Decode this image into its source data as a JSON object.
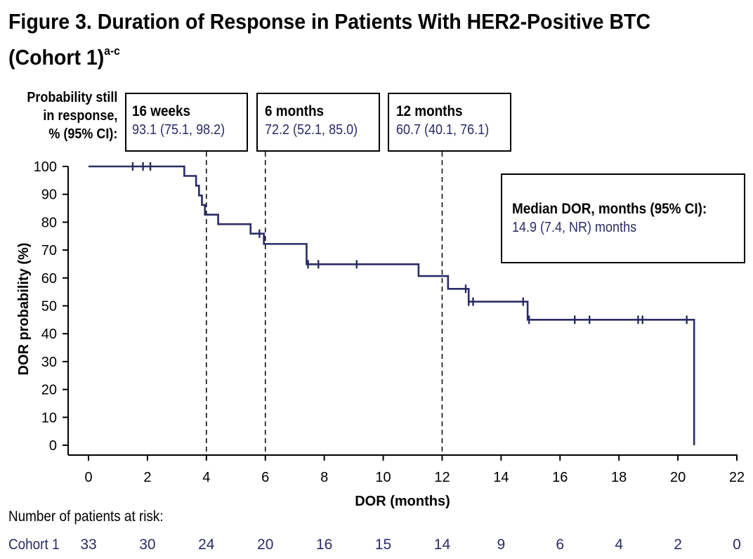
{
  "title": {
    "text": "Figure 3. Duration of Response in Patients With HER2-Positive BTC (Cohort 1)",
    "superscript": "a-c"
  },
  "annotation_label": [
    "Probability still",
    "in response,",
    "% (95% CI):"
  ],
  "callouts": [
    {
      "heading": "16 weeks",
      "value": "93.1 (75.1, 98.2)",
      "x": 4
    },
    {
      "heading": "6 months",
      "value": "72.2 (52.1, 85.0)",
      "x": 6
    },
    {
      "heading": "12 months",
      "value": "60.7 (40.1, 76.1)",
      "x": 12
    }
  ],
  "median_box": {
    "heading": "Median DOR, months (95% CI):",
    "value": "14.9 (7.4, NR) months"
  },
  "colors": {
    "curve": "#2b2b66",
    "axis": "#000000",
    "text_value": "#2b2b66"
  },
  "chart_data": {
    "type": "line",
    "subtype": "kaplan-meier step",
    "xlabel": "DOR (months)",
    "ylabel": "DOR probability (%)",
    "xlim": [
      0,
      22
    ],
    "ylim": [
      0,
      100
    ],
    "xticks": [
      0,
      2,
      4,
      6,
      8,
      10,
      12,
      14,
      16,
      18,
      20,
      22
    ],
    "yticks": [
      0,
      10,
      20,
      30,
      40,
      50,
      60,
      70,
      80,
      90,
      100
    ],
    "series": [
      {
        "name": "Cohort 1",
        "steps": [
          [
            0,
            100
          ],
          [
            3.25,
            96.6
          ],
          [
            3.65,
            93.1
          ],
          [
            3.75,
            89.6
          ],
          [
            3.85,
            86.2
          ],
          [
            3.95,
            82.7
          ],
          [
            4.4,
            79.3
          ],
          [
            5.5,
            75.9
          ],
          [
            5.95,
            72.2
          ],
          [
            7.4,
            64.9
          ],
          [
            11.2,
            60.7
          ],
          [
            12.2,
            56.1
          ],
          [
            12.9,
            51.5
          ],
          [
            14.9,
            45.0
          ],
          [
            20.55,
            0
          ]
        ],
        "end_x": 20.55,
        "censored": [
          [
            1.5,
            100
          ],
          [
            1.85,
            100
          ],
          [
            2.1,
            100
          ],
          [
            5.8,
            75.9
          ],
          [
            7.45,
            64.9
          ],
          [
            7.8,
            64.9
          ],
          [
            9.1,
            64.9
          ],
          [
            12.8,
            56.1
          ],
          [
            12.9,
            51.5
          ],
          [
            13.05,
            51.5
          ],
          [
            14.75,
            51.5
          ],
          [
            14.95,
            45.0
          ],
          [
            16.5,
            45.0
          ],
          [
            17.0,
            45.0
          ],
          [
            18.65,
            45.0
          ],
          [
            18.8,
            45.0
          ],
          [
            20.3,
            45.0
          ]
        ]
      }
    ],
    "reference_lines_x": [
      4,
      6,
      12
    ]
  },
  "risk_table": {
    "title": "Number of patients at risk:",
    "row_label": "Cohort 1",
    "times": [
      0,
      2,
      4,
      6,
      8,
      10,
      12,
      14,
      16,
      18,
      20,
      22
    ],
    "values": [
      "33",
      "30",
      "24",
      "20",
      "16",
      "15",
      "14",
      "9",
      "6",
      "4",
      "2",
      "0"
    ]
  }
}
